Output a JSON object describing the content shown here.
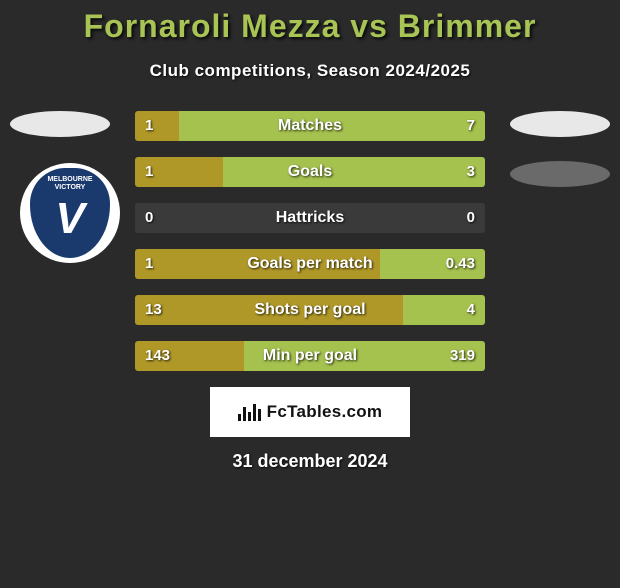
{
  "title": {
    "text": "Fornaroli Mezza vs Brimmer",
    "color": "#a8c454",
    "fontsize": 32
  },
  "subtitle": {
    "text": "Club competitions, Season 2024/2025",
    "fontsize": 17
  },
  "colors": {
    "bar_left": "#b09828",
    "bar_right": "#a5c14e",
    "bar_bg": "#3a3a3a",
    "value_text": "#ffffff",
    "label_text": "#ffffff"
  },
  "club_badge": {
    "top_text": "MELBOURNE",
    "bottom_text": "VICTORY",
    "letter": "V",
    "outer_bg": "#ffffff",
    "inner_bg": "#1a3a6e"
  },
  "stats": [
    {
      "label": "Matches",
      "left_val": "1",
      "right_val": "7",
      "left_pct": 12.5,
      "right_pct": 87.5
    },
    {
      "label": "Goals",
      "left_val": "1",
      "right_val": "3",
      "left_pct": 25.0,
      "right_pct": 75.0
    },
    {
      "label": "Hattricks",
      "left_val": "0",
      "right_val": "0",
      "left_pct": 0.0,
      "right_pct": 0.0
    },
    {
      "label": "Goals per match",
      "left_val": "1",
      "right_val": "0.43",
      "left_pct": 70.0,
      "right_pct": 30.0
    },
    {
      "label": "Shots per goal",
      "left_val": "13",
      "right_val": "4",
      "left_pct": 76.5,
      "right_pct": 23.5
    },
    {
      "label": "Min per goal",
      "left_val": "143",
      "right_val": "319",
      "left_pct": 31.0,
      "right_pct": 69.0
    }
  ],
  "bar_style": {
    "height": 30,
    "gap": 16,
    "value_fontsize": 15,
    "label_fontsize": 16
  },
  "footer": {
    "brand": "FcTables.com",
    "fontsize": 17,
    "date": "31 december 2024",
    "date_fontsize": 18
  }
}
